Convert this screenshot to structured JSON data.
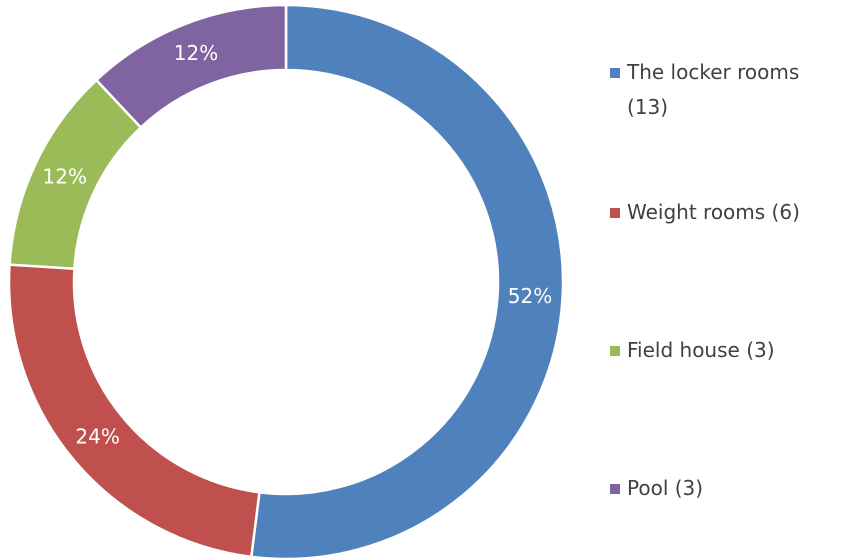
{
  "chart_data": {
    "type": "donut",
    "categories": [
      "The locker rooms (13)",
      "Weight rooms (6)",
      "Field house (3)",
      "Pool (3)"
    ],
    "values": [
      52,
      24,
      12,
      12
    ],
    "value_labels": [
      "52%",
      "24%",
      "12%",
      "12%"
    ],
    "colors": [
      "#4f81bd",
      "#c0504d",
      "#9bbb59",
      "#8064a2"
    ],
    "legend": "right"
  }
}
